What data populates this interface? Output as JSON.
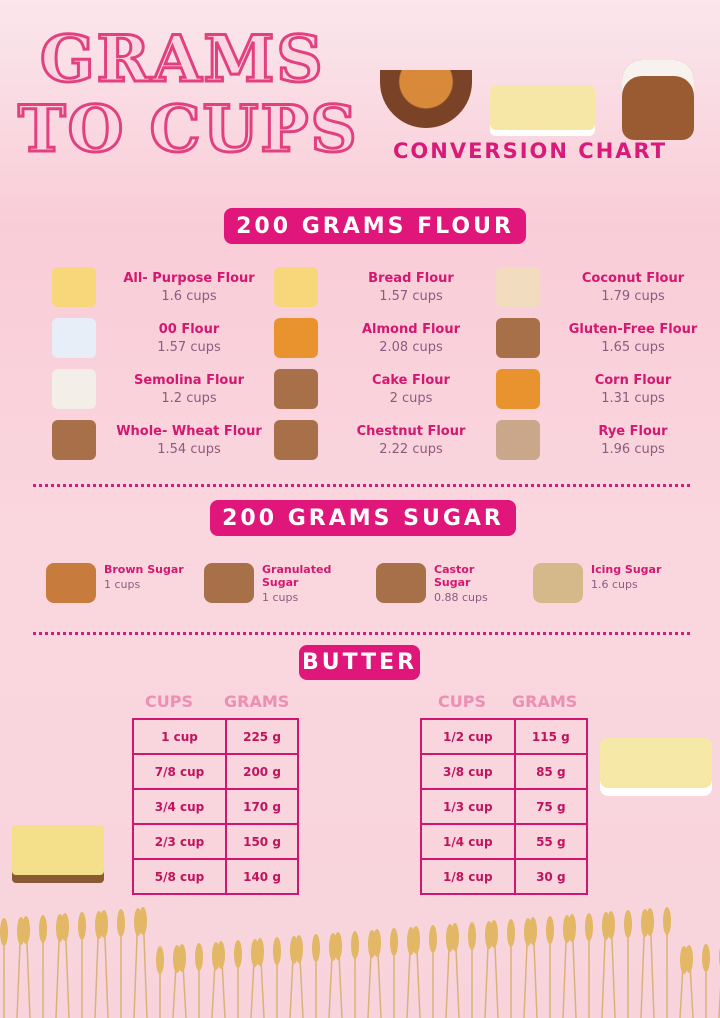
{
  "title": {
    "line1": "GRAMS",
    "line2": "TO CUPS",
    "subtitle": "CONVERSION CHART"
  },
  "colors": {
    "accent": "#e0167a",
    "value_text": "#8e5a80",
    "header_text": "#ec8fb5"
  },
  "flour": {
    "heading": "200 GRAMS FLOUR",
    "items": [
      {
        "label": "All- Purpose Flour",
        "value": "1.6 cups",
        "icon": "flour-bag-icon"
      },
      {
        "label": "Bread Flour",
        "value": "1.57 cups",
        "icon": "flour-bag-icon"
      },
      {
        "label": "Coconut Flour",
        "value": "1.79 cups",
        "icon": "flour-jar-icon"
      },
      {
        "label": "00 Flour",
        "value": "1.57 cups",
        "icon": "flour-carton-icon"
      },
      {
        "label": "Almond Flour",
        "value": "2.08 cups",
        "icon": "bowl-icon"
      },
      {
        "label": "Gluten-Free  Flour",
        "value": "1.65 cups",
        "icon": "sack-icon"
      },
      {
        "label": "Semolina Flour",
        "value": "1.2 cups",
        "icon": "flour-pile-icon"
      },
      {
        "label": "Cake Flour",
        "value": "2 cups",
        "icon": "sack-icon"
      },
      {
        "label": "Corn Flour",
        "value": "1.31 cups",
        "icon": "bowl-icon"
      },
      {
        "label": "Whole- Wheat Flour",
        "value": "1.54 cups",
        "icon": "sack-icon"
      },
      {
        "label": "Chestnut Flour",
        "value": "2.22  cups",
        "icon": "sack-icon"
      },
      {
        "label": "Rye Flour",
        "value": "1.96 cups",
        "icon": "spilled-sack-icon"
      }
    ]
  },
  "sugar": {
    "heading": "200 GRAMS SUGAR",
    "items": [
      {
        "label": "Brown Sugar",
        "value": "1 cups",
        "icon": "bowl-icon"
      },
      {
        "label": "Granulated Sugar",
        "value": "1 cups",
        "icon": "sack-icon"
      },
      {
        "label": "Castor Sugar",
        "value": "0.88 cups",
        "icon": "sack-icon"
      },
      {
        "label": "Icing Sugar",
        "value": "1.6 cups",
        "icon": "bag-icon"
      }
    ]
  },
  "butter": {
    "heading": "BUTTER",
    "col_cups": "CUPS",
    "col_grams": "GRAMS",
    "left": [
      [
        "1 cup",
        "225 g"
      ],
      [
        "7/8 cup",
        "200 g"
      ],
      [
        "3/4 cup",
        "170 g"
      ],
      [
        "2/3 cup",
        "150 g"
      ],
      [
        "5/8 cup",
        "140 g"
      ]
    ],
    "right": [
      [
        "1/2  cup",
        "115 g"
      ],
      [
        "3/8 cup",
        "85 g"
      ],
      [
        "1/3 cup",
        "75 g"
      ],
      [
        "1/4 cup",
        "55 g"
      ],
      [
        "1/8 cup",
        "30 g"
      ]
    ]
  }
}
